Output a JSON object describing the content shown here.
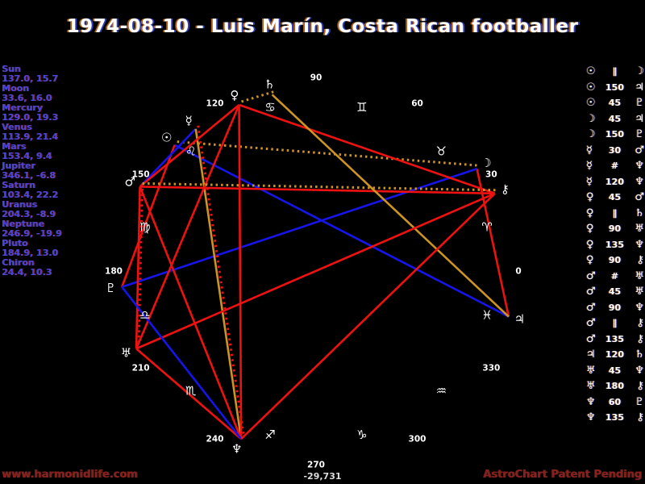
{
  "title": "1974-08-10 - Luis Marín, Costa Rican footballer",
  "footer": {
    "left": "www.harmonidlife.com",
    "right": "AstroChart Patent Pending",
    "bottom_value": "-29,731"
  },
  "colors": {
    "background": "#000000",
    "hard_aspect": "#ee1111",
    "soft_aspect": "#1515e8",
    "trine_aspect": "#cc9422",
    "panel_text": "#4646e0",
    "chart_text": "#ffffff",
    "footer_text": "#8b1e1e"
  },
  "chart_data": {
    "type": "scatter",
    "projection": "zodiac ellipse: ecliptic longitude = angle counterclockwise from right (0=east), declination = radial offset from ring",
    "planets": [
      {
        "name": "Sun",
        "glyph": "☉",
        "lon": 137.0,
        "dec": 15.7
      },
      {
        "name": "Moon",
        "glyph": "☽",
        "lon": 33.6,
        "dec": 16.0
      },
      {
        "name": "Mercury",
        "glyph": "☿",
        "lon": 129.0,
        "dec": 19.3
      },
      {
        "name": "Venus",
        "glyph": "♀",
        "lon": 113.9,
        "dec": 21.4
      },
      {
        "name": "Mars",
        "glyph": "♂",
        "lon": 153.4,
        "dec": 9.4
      },
      {
        "name": "Jupiter",
        "glyph": "♃",
        "lon": 346.1,
        "dec": -6.8
      },
      {
        "name": "Saturn",
        "glyph": "♄",
        "lon": 103.4,
        "dec": 22.2
      },
      {
        "name": "Uranus",
        "glyph": "♅",
        "lon": 204.3,
        "dec": -8.9
      },
      {
        "name": "Neptune",
        "glyph": "♆",
        "lon": 246.9,
        "dec": -19.9
      },
      {
        "name": "Pluto",
        "glyph": "♇",
        "lon": 184.9,
        "dec": 13.0
      },
      {
        "name": "Chiron",
        "glyph": "⚷",
        "lon": 24.4,
        "dec": 10.3
      }
    ],
    "zodiac_signs": [
      {
        "name": "Aries",
        "glyph": "♈",
        "mid_lon": 15
      },
      {
        "name": "Taurus",
        "glyph": "♉",
        "mid_lon": 45
      },
      {
        "name": "Gemini",
        "glyph": "♊",
        "mid_lon": 75
      },
      {
        "name": "Cancer",
        "glyph": "♋",
        "mid_lon": 105
      },
      {
        "name": "Leo",
        "glyph": "♌",
        "mid_lon": 135
      },
      {
        "name": "Virgo",
        "glyph": "♍",
        "mid_lon": 165
      },
      {
        "name": "Libra",
        "glyph": "♎",
        "mid_lon": 195
      },
      {
        "name": "Scorpio",
        "glyph": "♏",
        "mid_lon": 225
      },
      {
        "name": "Sagittarius",
        "glyph": "♐",
        "mid_lon": 255
      },
      {
        "name": "Capricorn",
        "glyph": "♑",
        "mid_lon": 285
      },
      {
        "name": "Aquarius",
        "glyph": "♒",
        "mid_lon": 315
      },
      {
        "name": "Pisces",
        "glyph": "♓",
        "mid_lon": 345
      }
    ],
    "ticks": [
      0,
      30,
      60,
      90,
      120,
      150,
      180,
      210,
      240,
      270,
      300,
      330
    ],
    "aspects": [
      {
        "p1": "Sun",
        "type": "∥",
        "p2": "Moon"
      },
      {
        "p1": "Sun",
        "type": "150",
        "p2": "Jupiter"
      },
      {
        "p1": "Sun",
        "type": "45",
        "p2": "Pluto"
      },
      {
        "p1": "Moon",
        "type": "45",
        "p2": "Jupiter"
      },
      {
        "p1": "Moon",
        "type": "150",
        "p2": "Pluto"
      },
      {
        "p1": "Mercury",
        "type": "30",
        "p2": "Mars"
      },
      {
        "p1": "Mercury",
        "type": "#",
        "p2": "Neptune"
      },
      {
        "p1": "Mercury",
        "type": "120",
        "p2": "Neptune"
      },
      {
        "p1": "Venus",
        "type": "45",
        "p2": "Mars"
      },
      {
        "p1": "Venus",
        "type": "∥",
        "p2": "Saturn"
      },
      {
        "p1": "Venus",
        "type": "90",
        "p2": "Uranus"
      },
      {
        "p1": "Venus",
        "type": "135",
        "p2": "Neptune"
      },
      {
        "p1": "Venus",
        "type": "90",
        "p2": "Chiron"
      },
      {
        "p1": "Mars",
        "type": "#",
        "p2": "Uranus"
      },
      {
        "p1": "Mars",
        "type": "45",
        "p2": "Uranus"
      },
      {
        "p1": "Mars",
        "type": "90",
        "p2": "Neptune"
      },
      {
        "p1": "Mars",
        "type": "∥",
        "p2": "Chiron"
      },
      {
        "p1": "Mars",
        "type": "135",
        "p2": "Chiron"
      },
      {
        "p1": "Jupiter",
        "type": "120",
        "p2": "Saturn"
      },
      {
        "p1": "Uranus",
        "type": "45",
        "p2": "Neptune"
      },
      {
        "p1": "Uranus",
        "type": "180",
        "p2": "Chiron"
      },
      {
        "p1": "Neptune",
        "type": "60",
        "p2": "Pluto"
      },
      {
        "p1": "Neptune",
        "type": "135",
        "p2": "Chiron"
      }
    ],
    "aspect_line_colors": {
      "hard": "#ee1111",
      "trine": "#cc9422",
      "soft": "#1515e8",
      "parallel": "#cc9422",
      "contraparallel": "#ee1111"
    }
  }
}
